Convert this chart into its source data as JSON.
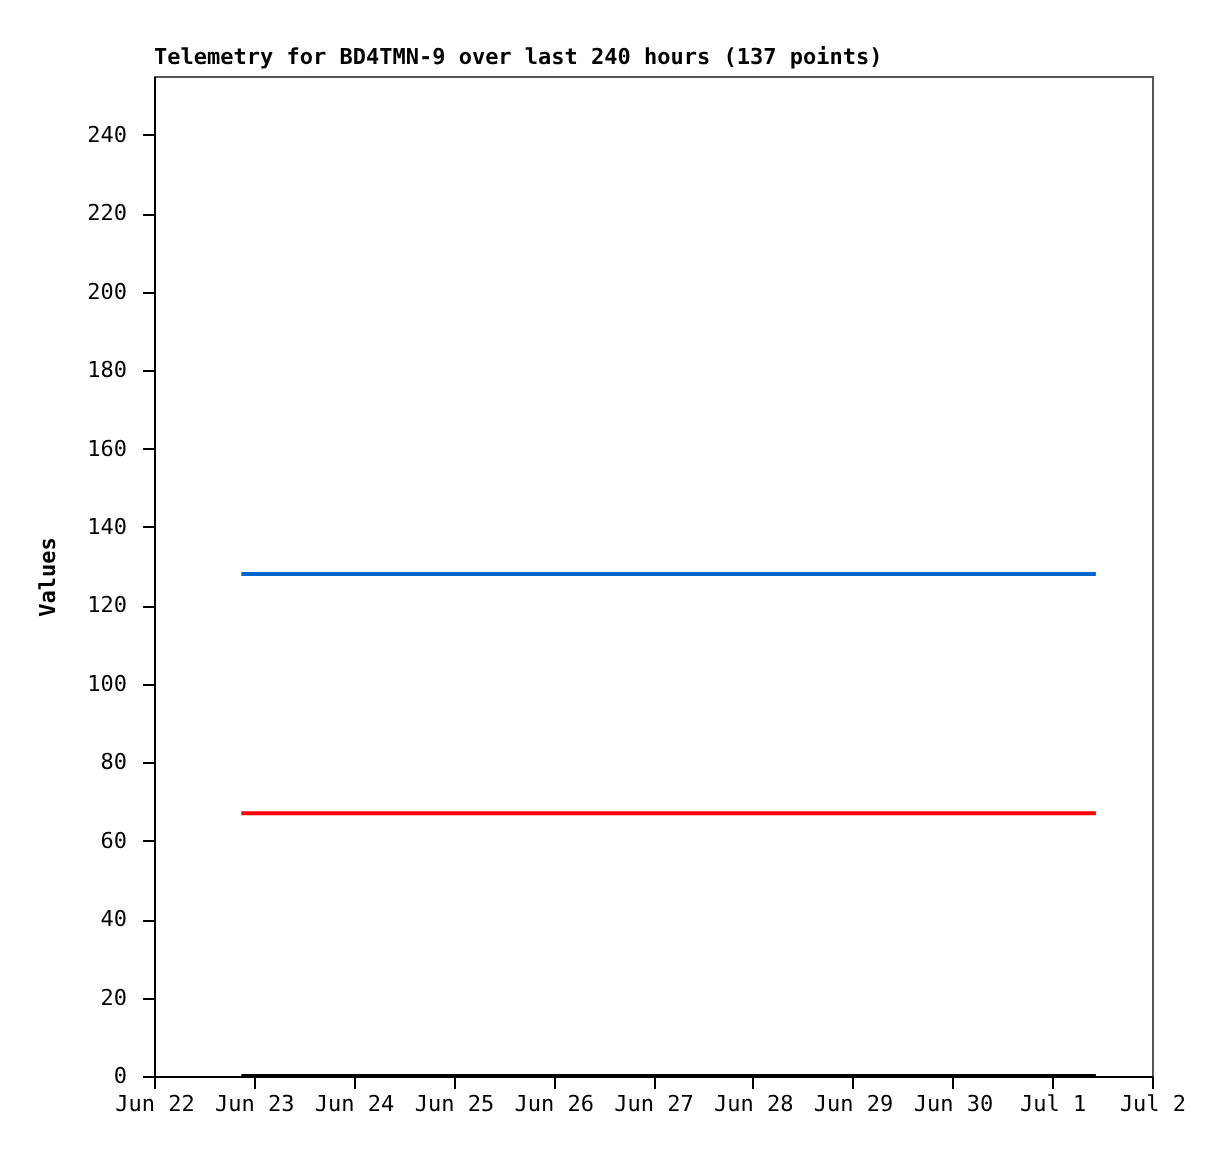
{
  "chart_data": {
    "type": "line",
    "title": "Telemetry for BD4TMN-9 over last 240 hours (137 points)",
    "ylabel": "Values",
    "xlim": [
      "--06-22",
      "--07-02"
    ],
    "xticks": [
      {
        "value": "--06-22",
        "label": "Jun 22"
      },
      {
        "value": "--06-23",
        "label": "Jun 23"
      },
      {
        "value": "--06-24",
        "label": "Jun 24"
      },
      {
        "value": "--06-25",
        "label": "Jun 25"
      },
      {
        "value": "--06-26",
        "label": "Jun 26"
      },
      {
        "value": "--06-27",
        "label": "Jun 27"
      },
      {
        "value": "--06-28",
        "label": "Jun 28"
      },
      {
        "value": "--06-29",
        "label": "Jun 29"
      },
      {
        "value": "--06-30",
        "label": "Jun 30"
      },
      {
        "value": "--07-01",
        "label": "Jul 1"
      },
      {
        "value": "--07-02",
        "label": "Jul 2"
      }
    ],
    "ylim": [
      0,
      255
    ],
    "yticks": [
      0,
      20,
      40,
      60,
      80,
      100,
      120,
      140,
      160,
      180,
      200,
      220,
      240
    ],
    "grid": false,
    "legend": false,
    "marker": "none",
    "line_style": "solid",
    "series": [
      {
        "color": "#0066cc",
        "x": [
          "--06-22T21:00",
          "--07-01T10:30"
        ],
        "values": [
          128,
          128
        ]
      },
      {
        "color": "#ff0000",
        "x": [
          "--06-22T21:00",
          "--07-01T10:30"
        ],
        "values": [
          67,
          67
        ]
      },
      {
        "color": "#000000",
        "x": [
          "--06-22T21:00",
          "--07-01T10:30"
        ],
        "values": [
          0,
          0
        ]
      }
    ]
  }
}
